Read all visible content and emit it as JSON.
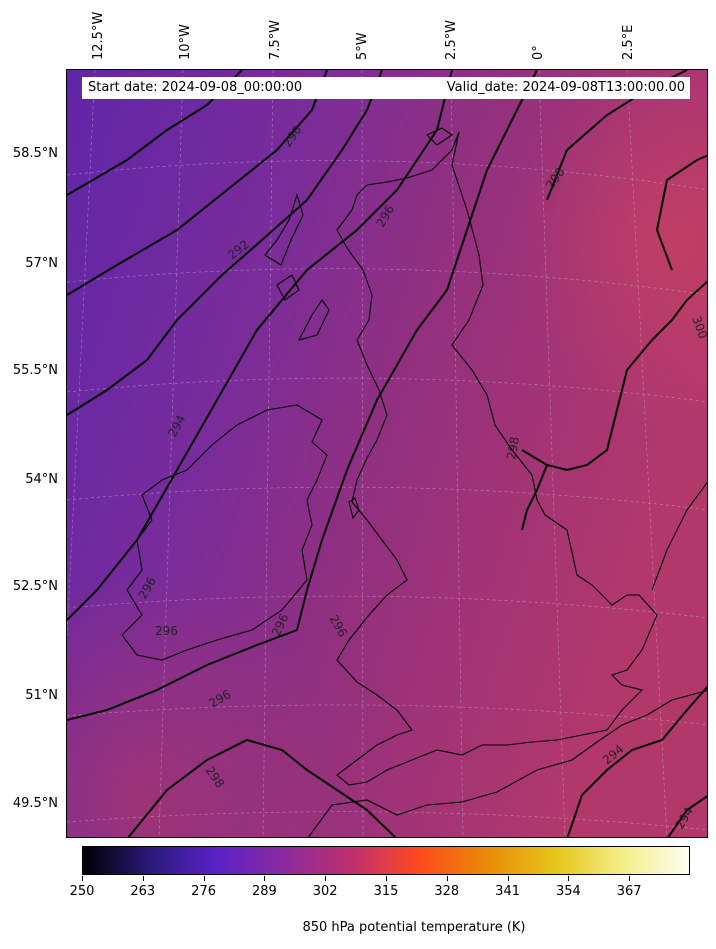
{
  "header": {
    "start_date": "Start date: 2024-09-08_00:00:00",
    "valid_date": "Valid_date: 2024-09-08T13:00:00.00"
  },
  "longitude_labels": [
    "12.5°W",
    "10°W",
    "7.5°W",
    "5°W",
    "2.5°W",
    "0°",
    "2.5°E"
  ],
  "latitude_labels": [
    "58.5°N",
    "57°N",
    "55.5°N",
    "54°N",
    "52.5°N",
    "51°N",
    "49.5°N"
  ],
  "contour_labels": [
    "290",
    "292",
    "294",
    "296",
    "296",
    "296",
    "296",
    "296",
    "296",
    "298",
    "298",
    "298",
    "300",
    "294",
    "294"
  ],
  "colorbar": {
    "title": "850 hPa potential temperature (K)",
    "ticks": [
      "250",
      "263",
      "276",
      "289",
      "302",
      "315",
      "328",
      "341",
      "354",
      "367"
    ],
    "colors": [
      "#000004",
      "#2b1a7a",
      "#5a22c8",
      "#8c2a9e",
      "#c02f6e",
      "#ff4a1e",
      "#e98a07",
      "#e6c419",
      "#f3ee85",
      "#fcfdf0"
    ]
  },
  "field_colors": {
    "cool_north_west": "#6b2aa4",
    "mid": "#8c2f8f",
    "warm_east": "#b23a6a",
    "coastline": "#000000"
  }
}
